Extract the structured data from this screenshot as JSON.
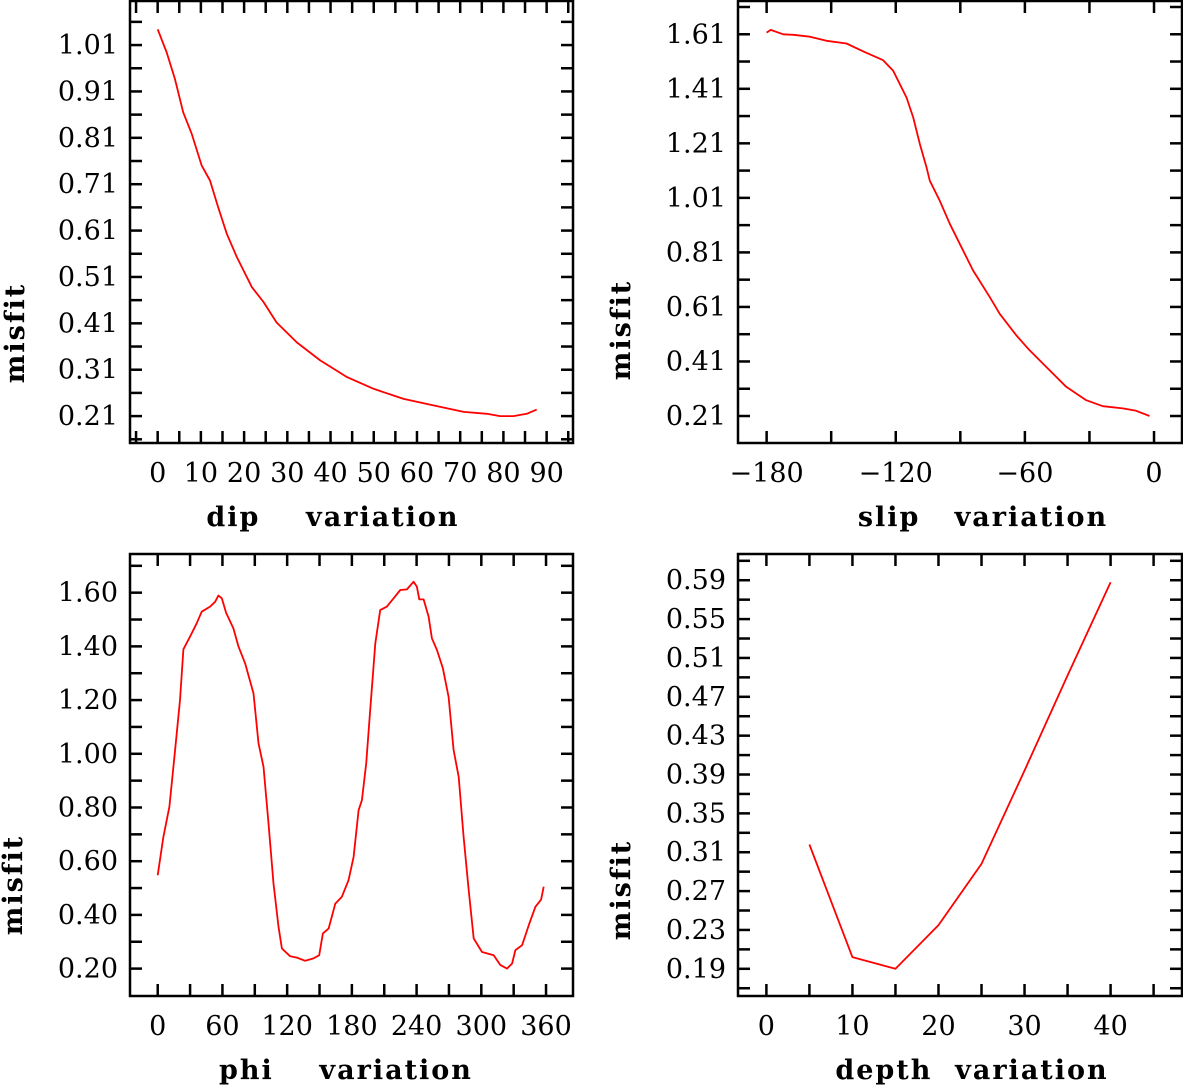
{
  "colors": {
    "line": "#ff0000",
    "axes": "#000000"
  },
  "chart_data": [
    {
      "type": "line",
      "xlabel": "dip    variation",
      "ylabel": "misfit",
      "xlim": [
        -6.4,
        96.1
      ],
      "ylim": [
        0.152,
        1.105
      ],
      "xticks": [
        0,
        10,
        20,
        30,
        40,
        50,
        60,
        70,
        80,
        90
      ],
      "xtick_labels": [
        "0",
        "10",
        "20",
        "30",
        "40",
        "50",
        "60",
        "70",
        "80",
        "90"
      ],
      "x_minor_step": 5,
      "yticks": [
        0.21,
        0.31,
        0.41,
        0.51,
        0.61,
        0.71,
        0.81,
        0.91,
        1.01
      ],
      "ytick_labels": [
        "0.21",
        "0.31",
        "0.41",
        "0.51",
        "0.61",
        "0.71",
        "0.81",
        "0.91",
        "1.01"
      ],
      "y_minor_step": 0.05,
      "x": [
        0,
        2.1,
        4.0,
        5.9,
        7.9,
        10.2,
        12.1,
        14.0,
        16.0,
        18.3,
        21.8,
        24.5,
        27.5,
        32.2,
        37.6,
        43.8,
        49.9,
        56.9,
        63.8,
        70.8,
        76.2,
        79.2,
        82.3,
        85.4,
        87.7
      ],
      "y": [
        1.044,
        0.994,
        0.937,
        0.865,
        0.818,
        0.75,
        0.718,
        0.66,
        0.603,
        0.553,
        0.488,
        0.456,
        0.412,
        0.369,
        0.33,
        0.294,
        0.269,
        0.247,
        0.233,
        0.219,
        0.215,
        0.21,
        0.21,
        0.215,
        0.224
      ]
    },
    {
      "type": "line",
      "xlabel": "slip   variation",
      "ylabel": "misfit",
      "xlim": [
        -193.3,
        13
      ],
      "ylim": [
        0.111,
        1.732
      ],
      "xticks": [
        -180,
        -120,
        -60,
        0
      ],
      "xtick_labels": [
        "−180",
        "−120",
        "−60",
        "0"
      ],
      "x_minor_step": 30,
      "yticks": [
        0.21,
        0.41,
        0.61,
        0.81,
        1.01,
        1.21,
        1.41,
        1.61
      ],
      "ytick_labels": [
        "0.21",
        "0.41",
        "0.61",
        "0.81",
        "1.01",
        "1.21",
        "1.41",
        "1.61"
      ],
      "y_minor_step": 0.1,
      "x": [
        -180,
        -178.1,
        -172.3,
        -167.6,
        -159.9,
        -152.2,
        -142.9,
        -135.1,
        -125.9,
        -121.2,
        -115.0,
        -111.9,
        -108.8,
        -105.7,
        -104.2,
        -99.6,
        -94.9,
        -90.3,
        -84.1,
        -76.4,
        -71.7,
        -64.0,
        -57.8,
        -50.1,
        -40.8,
        -31.5,
        -23.8,
        -14.5,
        -8.3,
        -2.1
      ],
      "y": [
        1.616,
        1.626,
        1.61,
        1.608,
        1.601,
        1.586,
        1.576,
        1.547,
        1.515,
        1.476,
        1.378,
        1.305,
        1.207,
        1.122,
        1.073,
        1.0,
        0.915,
        0.842,
        0.744,
        0.647,
        0.585,
        0.506,
        0.451,
        0.39,
        0.317,
        0.268,
        0.246,
        0.238,
        0.229,
        0.21
      ]
    },
    {
      "type": "line",
      "xlabel": "phi    variation",
      "ylabel": "misfit",
      "xlim": [
        -25.7,
        385
      ],
      "ylim": [
        0.098,
        1.744
      ],
      "xticks": [
        0,
        60,
        120,
        180,
        240,
        300,
        360
      ],
      "xtick_labels": [
        "0",
        "60",
        "120",
        "180",
        "240",
        "300",
        "360"
      ],
      "x_minor_step": 30,
      "yticks": [
        0.2,
        0.4,
        0.6,
        0.8,
        1.0,
        1.2,
        1.4,
        1.6
      ],
      "ytick_labels": [
        "0.20",
        "0.40",
        "0.60",
        "0.80",
        "1.00",
        "1.20",
        "1.40",
        "1.60"
      ],
      "y_minor_step": 0.1,
      "x": [
        0,
        5.3,
        10.8,
        16.1,
        20.7,
        23.8,
        29.9,
        36.1,
        40.8,
        48.6,
        53.2,
        56.3,
        59.4,
        63.4,
        70.2,
        74.9,
        81.0,
        84.1,
        88.8,
        93.4,
        98.1,
        102.7,
        107.3,
        112.0,
        115.1,
        122.8,
        129.0,
        136.7,
        144.4,
        149.7,
        153.1,
        158.4,
        164.6,
        170.7,
        176.9,
        181.6,
        186.2,
        189.3,
        193.3,
        197.0,
        201.7,
        206.3,
        212.5,
        218.7,
        224.9,
        231.0,
        237.2,
        240.3,
        242.5,
        246.5,
        251.1,
        254.2,
        258.9,
        264.4,
        269.7,
        274.3,
        279.0,
        283.6,
        288.3,
        292.9,
        300.6,
        311.5,
        317.7,
        323.8,
        328.5,
        331.6,
        337.8,
        344.0,
        350.1,
        355.4,
        357.8
      ],
      "y": [
        0.548,
        0.691,
        0.803,
        1.014,
        1.2,
        1.389,
        1.436,
        1.486,
        1.529,
        1.548,
        1.566,
        1.589,
        1.579,
        1.525,
        1.467,
        1.399,
        1.337,
        1.293,
        1.225,
        1.039,
        0.952,
        0.741,
        0.517,
        0.356,
        0.275,
        0.246,
        0.241,
        0.229,
        0.238,
        0.25,
        0.331,
        0.349,
        0.442,
        0.467,
        0.529,
        0.616,
        0.79,
        0.827,
        0.964,
        1.163,
        1.411,
        1.535,
        1.548,
        1.579,
        1.61,
        1.612,
        1.641,
        1.622,
        1.575,
        1.575,
        1.511,
        1.43,
        1.386,
        1.318,
        1.212,
        1.014,
        0.914,
        0.691,
        0.492,
        0.312,
        0.262,
        0.25,
        0.213,
        0.2,
        0.219,
        0.269,
        0.287,
        0.362,
        0.43,
        0.457,
        0.505
      ]
    },
    {
      "type": "line",
      "xlabel": "depth  variation",
      "ylabel": "misfit",
      "xlim": [
        -3.3,
        48.3
      ],
      "ylim": [
        0.162,
        0.617
      ],
      "xticks": [
        0,
        10,
        20,
        30,
        40
      ],
      "xtick_labels": [
        "0",
        "10",
        "20",
        "30",
        "40"
      ],
      "x_minor_step": 5,
      "yticks": [
        0.19,
        0.23,
        0.27,
        0.31,
        0.35,
        0.39,
        0.43,
        0.47,
        0.51,
        0.55,
        0.59
      ],
      "ytick_labels": [
        "0.19",
        "0.23",
        "0.27",
        "0.31",
        "0.35",
        "0.39",
        "0.43",
        "0.47",
        "0.51",
        "0.55",
        "0.59"
      ],
      "y_minor_step": 0.02,
      "x": [
        5,
        10,
        15,
        20,
        25,
        30,
        35,
        40
      ],
      "y": [
        0.318,
        0.202,
        0.19,
        0.235,
        0.298,
        0.394,
        0.492,
        0.588
      ]
    }
  ]
}
